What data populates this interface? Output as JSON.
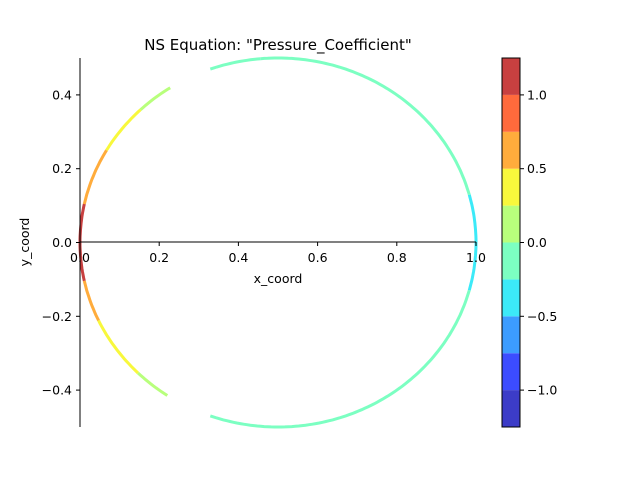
{
  "chart_data": {
    "type": "filled-contour",
    "title": "NS Equation:  \"Pressure_Coefficient\"",
    "xlabel": "x_coord",
    "ylabel": "y_coord",
    "xlim": [
      0.0,
      1.0
    ],
    "ylim": [
      -0.5,
      0.5
    ],
    "x_ticks": [
      {
        "value": 0.0,
        "label": "0.0"
      },
      {
        "value": 0.2,
        "label": "0.2"
      },
      {
        "value": 0.4,
        "label": "0.4"
      },
      {
        "value": 0.6,
        "label": "0.6"
      },
      {
        "value": 0.8,
        "label": "0.8"
      },
      {
        "value": 1.0,
        "label": "1.0"
      }
    ],
    "y_ticks": [
      {
        "value": 0.4,
        "label": "0.4"
      },
      {
        "value": 0.2,
        "label": "0.2"
      },
      {
        "value": 0.0,
        "label": "0.0"
      },
      {
        "value": -0.2,
        "label": "−0.2"
      },
      {
        "value": -0.4,
        "label": "−0.4"
      }
    ],
    "colorbar": {
      "range": [
        -1.25,
        1.25
      ],
      "levels": [
        {
          "from": -1.25,
          "to": -1.0,
          "color": "#3c3cc8"
        },
        {
          "from": -1.0,
          "to": -0.75,
          "color": "#3c4cff"
        },
        {
          "from": -0.75,
          "to": -0.5,
          "color": "#3c9cff"
        },
        {
          "from": -0.5,
          "to": -0.25,
          "color": "#3ceaf8"
        },
        {
          "from": -0.25,
          "to": 0.0,
          "color": "#7cffc2"
        },
        {
          "from": 0.0,
          "to": 0.25,
          "color": "#b8ff7c"
        },
        {
          "from": 0.25,
          "to": 0.5,
          "color": "#f8f83c"
        },
        {
          "from": 0.5,
          "to": 0.75,
          "color": "#ffac3c"
        },
        {
          "from": 0.75,
          "to": 1.0,
          "color": "#ff6a3c"
        },
        {
          "from": 1.0,
          "to": 1.25,
          "color": "#c84040"
        }
      ],
      "ticks": [
        {
          "value": 1.0,
          "label": "1.0"
        },
        {
          "value": 0.5,
          "label": "0.5"
        },
        {
          "value": 0.0,
          "label": "0.0"
        },
        {
          "value": -0.5,
          "label": "−0.5"
        },
        {
          "value": -1.0,
          "label": "−1.0"
        }
      ]
    },
    "surface": {
      "shape": "circle",
      "center": [
        0.5,
        0.0
      ],
      "radius": 0.5,
      "pressure_by_angle_deg": [
        {
          "from": 0,
          "to": 15,
          "value": -0.35
        },
        {
          "from": 15,
          "to": 95,
          "value": -0.1
        },
        {
          "from": 95,
          "to": 110,
          "value": -0.1
        },
        {
          "from": 123,
          "to": 134,
          "value": 0.1
        },
        {
          "from": 134,
          "to": 150,
          "value": 0.35
        },
        {
          "from": 150,
          "to": 168,
          "value": 0.6
        },
        {
          "from": 168,
          "to": 192,
          "value": 1.1
        },
        {
          "from": 192,
          "to": 205,
          "value": 0.6
        },
        {
          "from": 205,
          "to": 225,
          "value": 0.35
        },
        {
          "from": 225,
          "to": 236,
          "value": 0.1
        },
        {
          "from": 250,
          "to": 345,
          "value": -0.1
        },
        {
          "from": 345,
          "to": 360,
          "value": -0.35
        }
      ]
    }
  }
}
